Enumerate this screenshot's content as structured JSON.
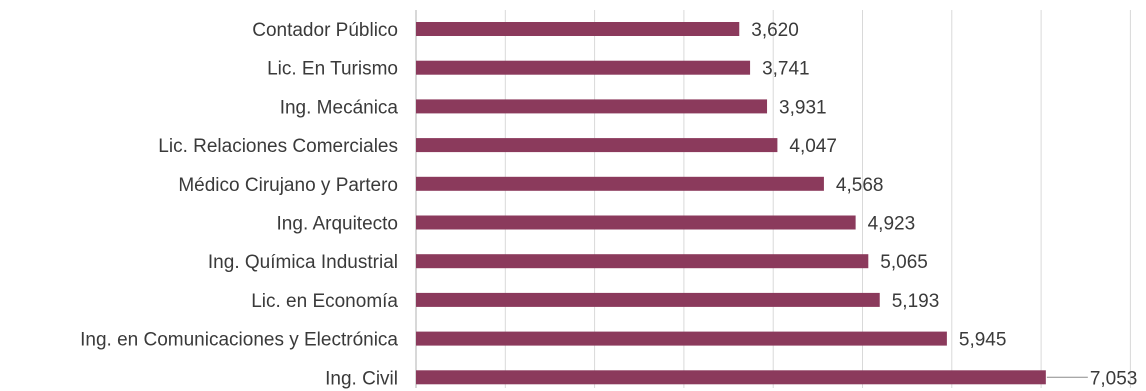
{
  "chart_data": {
    "type": "bar",
    "orientation": "horizontal",
    "categories": [
      "Contador Público",
      "Lic. En Turismo",
      "Ing. Mecánica",
      "Lic. Relaciones Comerciales",
      "Médico Cirujano y Partero",
      "Ing. Arquitecto",
      "Ing. Química Industrial",
      "Lic. en Economía",
      "Ing. en Comunicaciones y Electrónica",
      "Ing. Civil"
    ],
    "values": [
      3620,
      3741,
      3931,
      4047,
      4568,
      4923,
      5065,
      5193,
      5945,
      7053
    ],
    "value_labels": [
      "3,620",
      "3,741",
      "3,931",
      "4,047",
      "4,568",
      "4,923",
      "5,065",
      "5,193",
      "5,945",
      "7,053"
    ],
    "xlim": [
      0,
      8000
    ],
    "grid": true,
    "bar_color": "#8b3a5c",
    "title": "",
    "xlabel": "",
    "ylabel": ""
  }
}
